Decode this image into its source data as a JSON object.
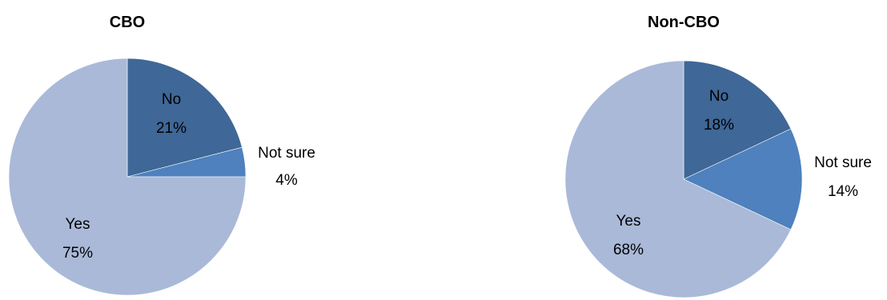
{
  "chart_data": [
    {
      "type": "pie",
      "title": "CBO",
      "slices": [
        {
          "label": "No",
          "value": 21,
          "display": "21%",
          "color": "#3f6797"
        },
        {
          "label": "Not sure",
          "value": 4,
          "display": "4%",
          "color": "#4e81bd"
        },
        {
          "label": "Yes",
          "value": 75,
          "display": "75%",
          "color": "#aab9d8"
        }
      ]
    },
    {
      "type": "pie",
      "title": "Non-CBO",
      "slices": [
        {
          "label": "No",
          "value": 18,
          "display": "18%",
          "color": "#3f6797"
        },
        {
          "label": "Not sure",
          "value": 14,
          "display": "14%",
          "color": "#4e81bd"
        },
        {
          "label": "Yes",
          "value": 68,
          "display": "68%",
          "color": "#aab9d8"
        }
      ]
    }
  ]
}
